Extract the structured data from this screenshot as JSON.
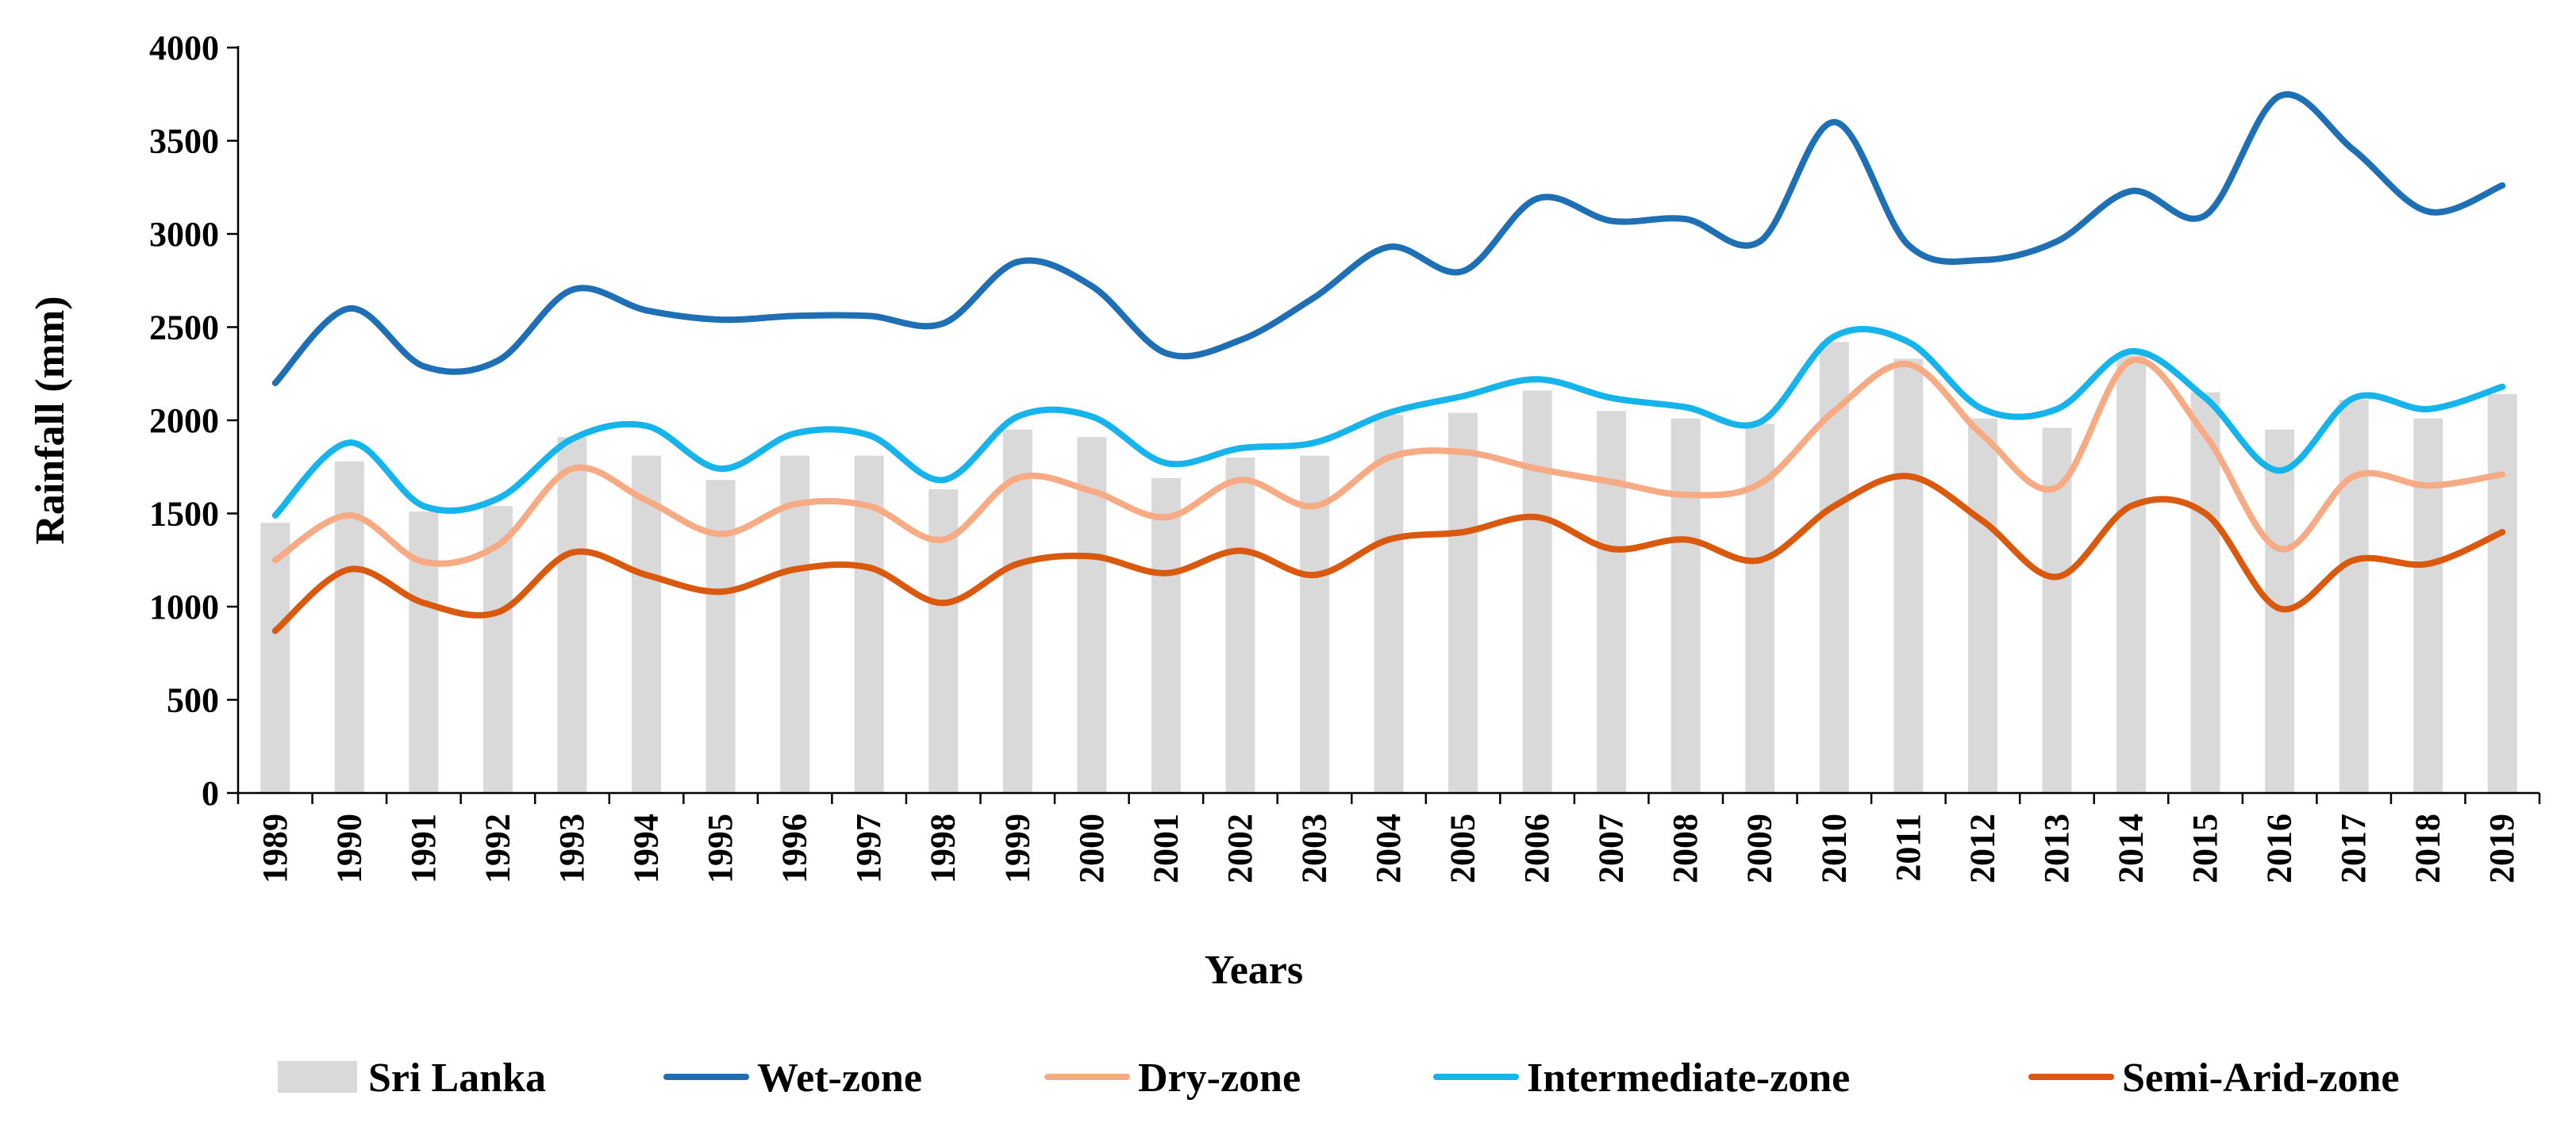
{
  "chart_data": {
    "type": "bar",
    "title": "",
    "xlabel": "Years",
    "ylabel": "Rainfall (mm)",
    "ylim": [
      0,
      4000
    ],
    "yticks": [
      0,
      500,
      1000,
      1500,
      2000,
      2500,
      3000,
      3500,
      4000
    ],
    "grid": false,
    "legend_position": "bottom",
    "categories": [
      "1989",
      "1990",
      "1991",
      "1992",
      "1993",
      "1994",
      "1995",
      "1996",
      "1997",
      "1998",
      "1999",
      "2000",
      "2001",
      "2002",
      "2003",
      "2004",
      "2005",
      "2006",
      "2007",
      "2008",
      "2009",
      "2010",
      "2011",
      "2012",
      "2013",
      "2014",
      "2015",
      "2016",
      "2017",
      "2018",
      "2019"
    ],
    "series": [
      {
        "name": "Sri Lanka",
        "kind": "bar",
        "color": "#d9d9d9",
        "values": [
          1450,
          1780,
          1510,
          1540,
          1910,
          1810,
          1680,
          1810,
          1810,
          1630,
          1950,
          1910,
          1690,
          1800,
          1810,
          2030,
          2040,
          2160,
          2050,
          2010,
          1980,
          2420,
          2330,
          2010,
          1960,
          2350,
          2150,
          1950,
          2110,
          2010,
          2140
        ]
      },
      {
        "name": "Wet-zone",
        "kind": "line",
        "color": "#1f6fb4",
        "values": [
          2200,
          2600,
          2290,
          2320,
          2700,
          2590,
          2540,
          2560,
          2560,
          2520,
          2850,
          2720,
          2360,
          2430,
          2660,
          2930,
          2800,
          3190,
          3070,
          3080,
          2960,
          3600,
          2940,
          2860,
          2960,
          3230,
          3100,
          3740,
          3450,
          3120,
          3260
        ]
      },
      {
        "name": "Dry-zone",
        "kind": "line",
        "color": "#f7ab84",
        "values": [
          1250,
          1490,
          1240,
          1330,
          1740,
          1570,
          1390,
          1550,
          1540,
          1360,
          1690,
          1620,
          1480,
          1680,
          1540,
          1800,
          1830,
          1740,
          1670,
          1600,
          1660,
          2050,
          2300,
          1920,
          1640,
          2320,
          1920,
          1310,
          1700,
          1650,
          1710
        ]
      },
      {
        "name": "Intermediate-zone",
        "kind": "line",
        "color": "#16b4eb",
        "values": [
          1490,
          1880,
          1540,
          1580,
          1900,
          1970,
          1740,
          1930,
          1920,
          1680,
          2020,
          2020,
          1770,
          1850,
          1880,
          2040,
          2130,
          2220,
          2120,
          2070,
          1990,
          2450,
          2420,
          2060,
          2060,
          2370,
          2120,
          1730,
          2120,
          2060,
          2180
        ]
      },
      {
        "name": "Semi-Arid-zone",
        "kind": "line",
        "color": "#d9590f",
        "values": [
          870,
          1200,
          1020,
          970,
          1290,
          1170,
          1080,
          1200,
          1210,
          1020,
          1230,
          1270,
          1180,
          1300,
          1170,
          1360,
          1400,
          1480,
          1310,
          1360,
          1250,
          1540,
          1700,
          1460,
          1160,
          1540,
          1500,
          990,
          1250,
          1230,
          1400
        ]
      }
    ]
  }
}
